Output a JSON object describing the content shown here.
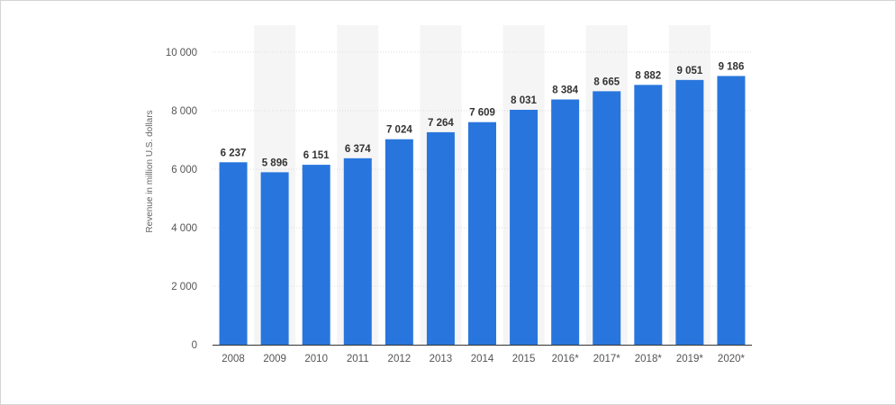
{
  "chart_data": {
    "type": "bar",
    "title": "",
    "xlabel": "",
    "ylabel": "Revenue in million U.S. dollars",
    "categories": [
      "2008",
      "2009",
      "2010",
      "2011",
      "2012",
      "2013",
      "2014",
      "2015",
      "2016*",
      "2017*",
      "2018*",
      "2019*",
      "2020*"
    ],
    "values": [
      6237,
      5896,
      6151,
      6374,
      7024,
      7264,
      7609,
      8031,
      8384,
      8665,
      8882,
      9051,
      9186
    ],
    "value_labels": [
      "6 237",
      "5 896",
      "6 151",
      "6 374",
      "7 024",
      "7 264",
      "7 609",
      "8 031",
      "8 384",
      "8 665",
      "8 882",
      "9 051",
      "9 186"
    ],
    "ylim": [
      0,
      10000
    ],
    "yticks": [
      0,
      2000,
      4000,
      6000,
      8000,
      10000
    ],
    "ytick_labels": [
      "0",
      "2 000",
      "4 000",
      "6 000",
      "8 000",
      "10 000"
    ],
    "grid": true,
    "bar_color": "#2876dd",
    "band_color": "#f5f5f5",
    "grid_color": "#dcdcdc",
    "axis_color": "#333333"
  }
}
